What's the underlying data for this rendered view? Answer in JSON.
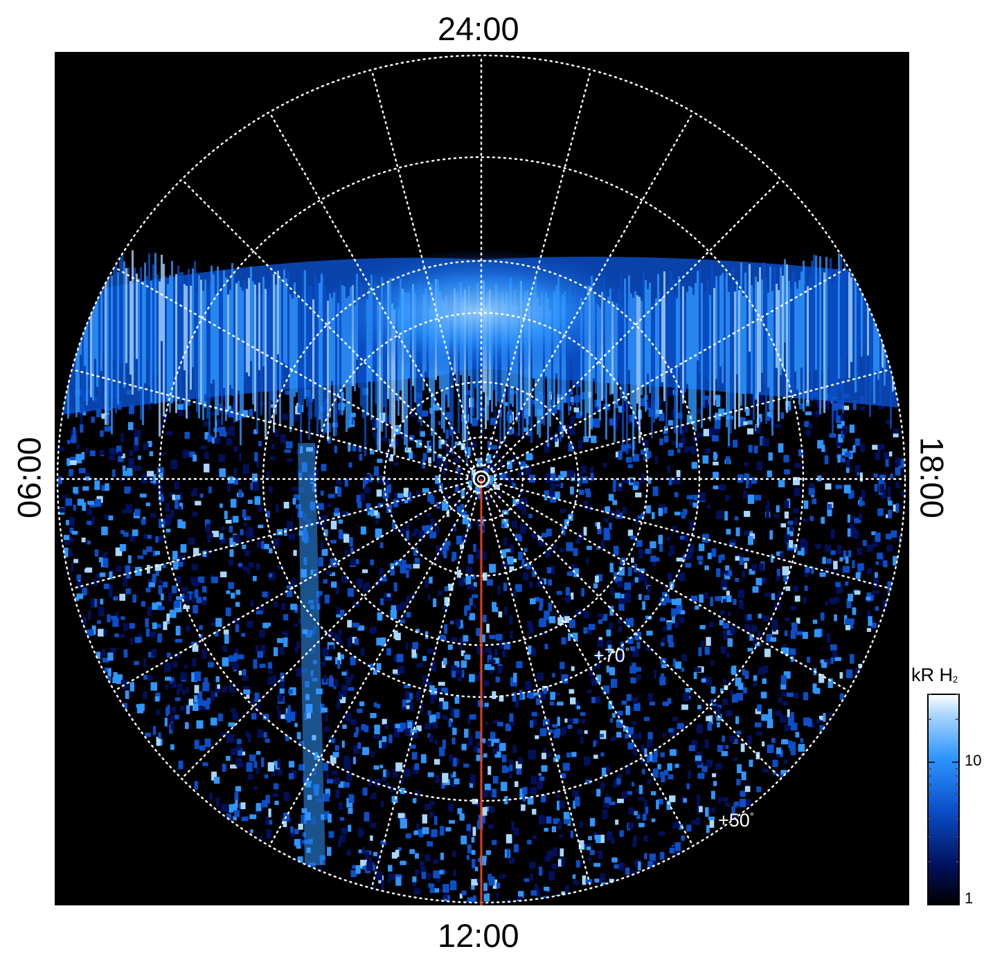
{
  "local_time_labels": {
    "top": "24:00",
    "bottom": "12:00",
    "left": "06:00",
    "right": "18:00"
  },
  "latitude_labels": {
    "lat70": "+70",
    "lat50": "+50",
    "degree": "°"
  },
  "colorbar": {
    "title": "kR H",
    "title_subscript": "2",
    "tick_labels": [
      "10",
      "1"
    ],
    "colors": [
      "#000000",
      "#00105a",
      "#0a4fc8",
      "#2f96ff",
      "#a9d6ff",
      "#ffffff"
    ]
  },
  "colors": {
    "background": "#000000",
    "grid": "#ffffff",
    "meridian_line": "#e0401a",
    "aurora": "#2f96ff"
  }
}
